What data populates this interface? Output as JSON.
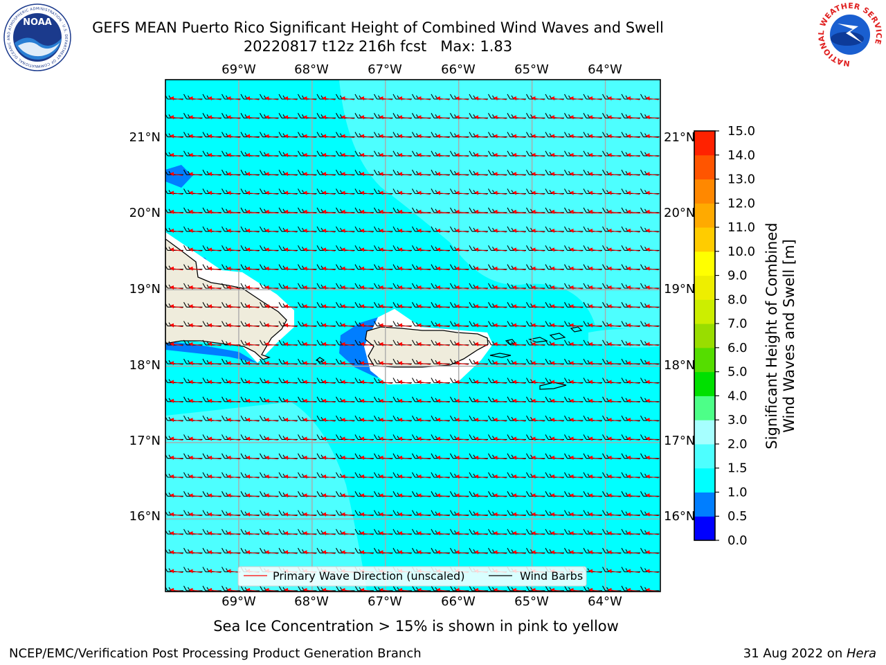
{
  "header": {
    "title": "GEFS MEAN Puerto Rico Significant Height of Combined Wind Waves and Swell",
    "subtitle": "20220817 t12z 216h fcst   Max: 1.83",
    "left_logo": {
      "name": "NOAA",
      "ring_text": "NATIONAL OCEANIC AND ATMOSPHERIC ADMINISTRATION · U.S. DEPARTMENT OF COMMERCE"
    },
    "right_logo": {
      "ring_text": "NATIONAL WEATHER SERVICE"
    }
  },
  "map": {
    "lon_labels": [
      "69°W",
      "68°W",
      "67°W",
      "66°W",
      "65°W",
      "64°W"
    ],
    "lat_labels": [
      "21°N",
      "20°N",
      "19°N",
      "18°N",
      "17°N",
      "16°N"
    ],
    "lon_range": [
      -70.0,
      -63.25
    ],
    "lat_range": [
      15.05,
      21.75
    ],
    "colors": {
      "ocean_mid": "#00ffff",
      "ocean_light": "#4dffff",
      "ocean_lighter": "#a6ffff",
      "low_blue": "#007eff",
      "land": "#efecdc",
      "grid": "#aaaaaa"
    }
  },
  "legend": {
    "wave_direction": "Primary Wave Direction (unscaled)",
    "wind_barbs": "Wind Barbs"
  },
  "colorbar": {
    "label_line1": "Significant Height of Combined",
    "label_line2": "Wind Waves and Swell [m]",
    "ticks": [
      "0.0",
      "0.5",
      "1.0",
      "1.5",
      "2.0",
      "3.0",
      "4.0",
      "5.0",
      "6.0",
      "7.0",
      "8.0",
      "9.0",
      "10.0",
      "11.0",
      "12.0",
      "13.0",
      "14.0",
      "15.0"
    ],
    "colors": [
      "#0000ff",
      "#007eff",
      "#00ffff",
      "#4dffff",
      "#a6ffff",
      "#4dff88",
      "#00e000",
      "#55dd00",
      "#99dd00",
      "#ccee00",
      "#eeee00",
      "#ffff00",
      "#ffcc00",
      "#ffaa00",
      "#ff8800",
      "#ff5500",
      "#ff2200",
      "#ff0000"
    ]
  },
  "note": "Sea Ice Concentration > 15% is shown in pink to yellow",
  "footer": {
    "left": "NCEP/EMC/Verification Post Processing Product Generation Branch",
    "right_prefix": "31 Aug 2022 on ",
    "right_host": "Hera"
  }
}
